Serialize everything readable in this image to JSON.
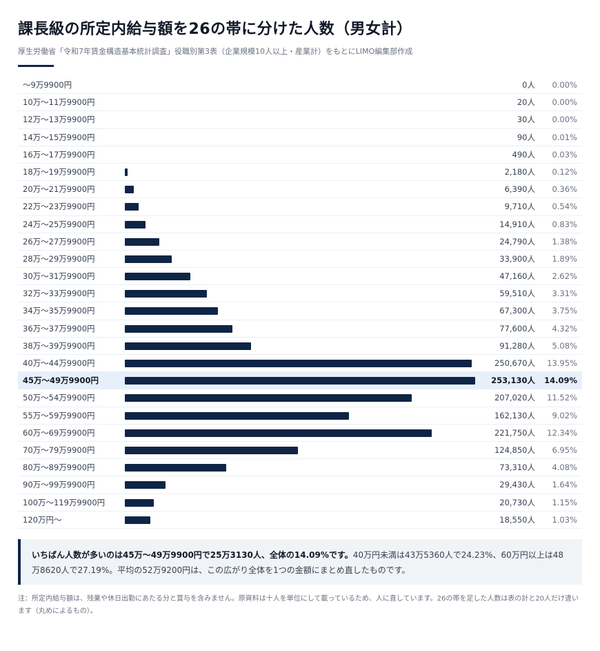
{
  "title": "課長級の所定内給与額を26の帯に分けた人数（男女計）",
  "subtitle": "厚生労働省「令和7年賃金構造基本統計調査」役職別第3表（企業規模10人以上・産業計）をもとにLIMO編集部作成",
  "chart_data": {
    "type": "bar",
    "orientation": "horizontal",
    "title": "課長級の所定内給与額を26の帯に分けた人数（男女計）",
    "highlight_index": 17,
    "colors": {
      "bar": "#0f2546",
      "highlight_row": "#e7f0fa"
    },
    "categories": [
      "～9万9900円",
      "10万～11万9900円",
      "12万～13万9900円",
      "14万～15万9900円",
      "16万～17万9900円",
      "18万～19万9900円",
      "20万～21万9900円",
      "22万～23万9900円",
      "24万～25万9900円",
      "26万～27万9900円",
      "28万～29万9900円",
      "30万～31万9900円",
      "32万～33万9900円",
      "34万～35万9900円",
      "36万～37万9900円",
      "38万～39万9900円",
      "40万～44万9900円",
      "45万～49万9900円",
      "50万～54万9900円",
      "55万～59万9900円",
      "60万～69万9900円",
      "70万～79万9900円",
      "80万～89万9900円",
      "90万～99万9900円",
      "100万～119万9900円",
      "120万円～"
    ],
    "values": [
      0,
      20,
      30,
      90,
      490,
      2180,
      6390,
      9710,
      14910,
      24790,
      33900,
      47160,
      59510,
      67300,
      77600,
      91280,
      250670,
      253130,
      207020,
      162130,
      221750,
      124850,
      73310,
      29430,
      20730,
      18550
    ],
    "count_labels": [
      "0人",
      "20人",
      "30人",
      "90人",
      "490人",
      "2,180人",
      "6,390人",
      "9,710人",
      "14,910人",
      "24,790人",
      "33,900人",
      "47,160人",
      "59,510人",
      "67,300人",
      "77,600人",
      "91,280人",
      "250,670人",
      "253,130人",
      "207,020人",
      "162,130人",
      "221,750人",
      "124,850人",
      "73,310人",
      "29,430人",
      "20,730人",
      "18,550人"
    ],
    "percent_labels": [
      "0.00%",
      "0.00%",
      "0.00%",
      "0.01%",
      "0.03%",
      "0.12%",
      "0.36%",
      "0.54%",
      "0.83%",
      "1.38%",
      "1.89%",
      "2.62%",
      "3.31%",
      "3.75%",
      "4.32%",
      "5.08%",
      "13.95%",
      "14.09%",
      "11.52%",
      "9.02%",
      "12.34%",
      "6.95%",
      "4.08%",
      "1.64%",
      "1.15%",
      "1.03%"
    ]
  },
  "summary": {
    "bold": "いちばん人数が多いのは45万～49万9900円で25万3130人、全体の14.09%です。",
    "rest": "40万円未満は43万5360人で24.23%、60万円以上は48万8620人で27.19%。平均の52万9200円は、この広がり全体を1つの金額にまとめ直したものです。"
  },
  "footnote": "注：所定内給与額は、残業や休日出勤にあたる分と賞与を含みません。原資料は十人を単位にして載っているため、人に直しています。26の帯を足した人数は表の計と20人だけ違います（丸めによるもの）。"
}
